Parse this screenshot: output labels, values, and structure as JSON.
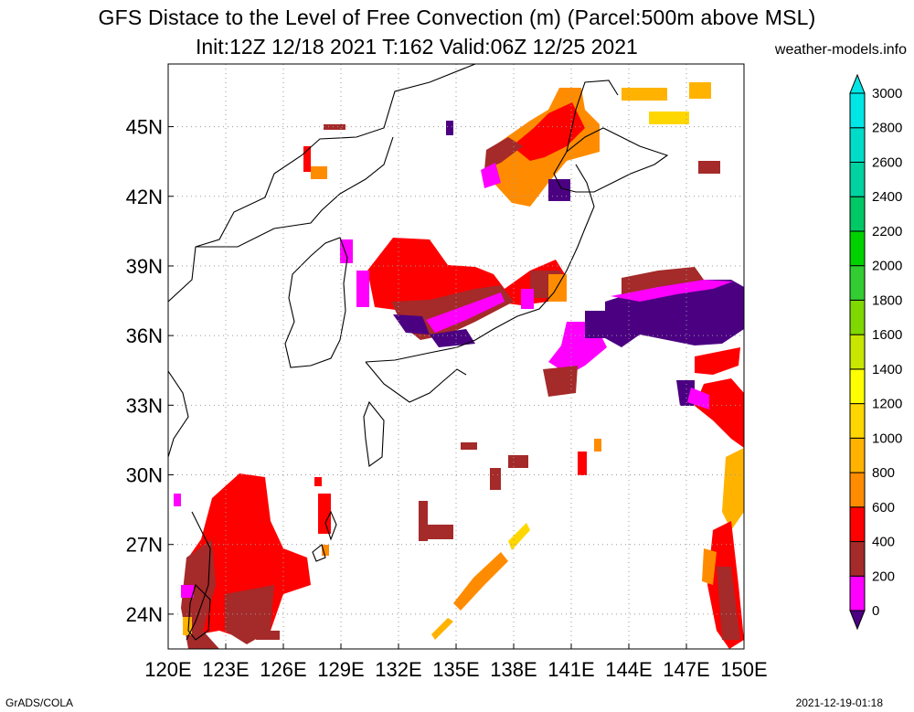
{
  "title": {
    "line1": "GFS Distace to the Level of Free Convection (m) (Parcel:500m above MSL)",
    "line2": "Init:12Z 12/18 2021 T:162 Valid:06Z 12/25 2021",
    "site": "weather-models.info"
  },
  "footer": {
    "left": "GrADS/COLA",
    "right": "2021-12-19-01:18"
  },
  "map": {
    "lon_labels": [
      "120E",
      "123E",
      "126E",
      "129E",
      "132E",
      "135E",
      "138E",
      "141E",
      "144E",
      "147E",
      "150E"
    ],
    "lat_labels": [
      "24N",
      "27N",
      "30N",
      "33N",
      "36N",
      "39N",
      "42N",
      "45N"
    ],
    "lon_values": [
      120,
      123,
      126,
      129,
      132,
      135,
      138,
      141,
      144,
      147,
      150
    ],
    "lat_values": [
      24,
      27,
      30,
      33,
      36,
      39,
      42,
      45
    ]
  },
  "colorbar": {
    "labels": [
      "0",
      "200",
      "400",
      "600",
      "800",
      "1000",
      "1200",
      "1400",
      "1600",
      "1800",
      "2000",
      "2200",
      "2400",
      "2600",
      "2800",
      "3000"
    ],
    "colors": [
      "#4b0082",
      "#ff00ff",
      "#a52a2a",
      "#ff0000",
      "#ff8c00",
      "#ffb300",
      "#ffd700",
      "#ffff00",
      "#c8e600",
      "#7fd800",
      "#32cd32",
      "#00d200",
      "#00c864",
      "#00d2a0",
      "#00dcc8",
      "#00e6e6"
    ]
  }
}
